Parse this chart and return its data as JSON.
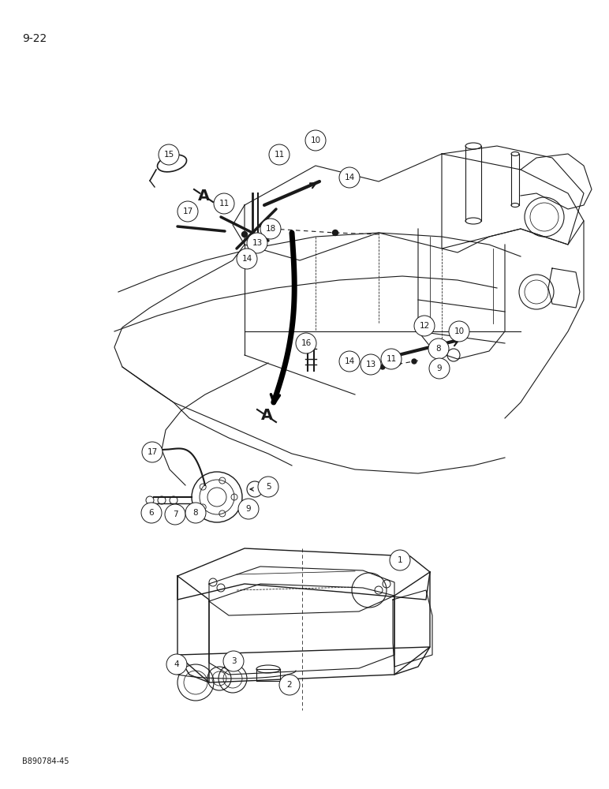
{
  "page_number": "9-22",
  "figure_id": "B890784-45",
  "background": "#ffffff",
  "line_color": "#1a1a1a",
  "callout_font_size": 7.5,
  "page_font_size": 10,
  "fig_font_size": 7
}
